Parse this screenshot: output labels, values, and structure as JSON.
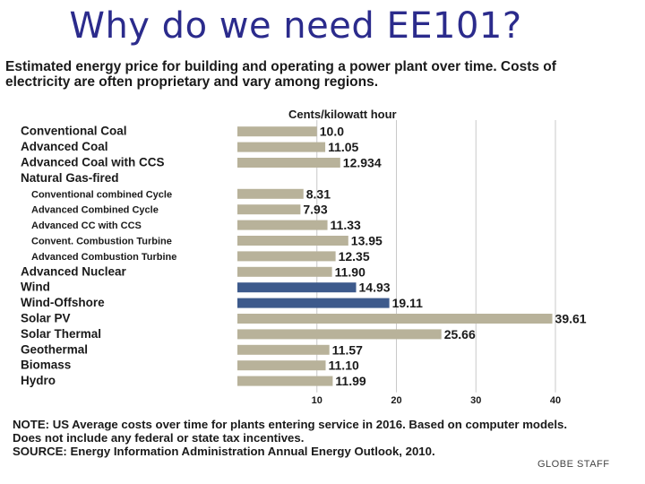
{
  "slide": {
    "title": "Why do we need EE101?"
  },
  "chart_data": {
    "type": "bar",
    "orientation": "horizontal",
    "title": "Estimated energy price for building and operating a power plant over time. Costs of electricity are often proprietary and vary among regions.",
    "ylabel": "Cents/kilowatt hour",
    "xlim": [
      0,
      40
    ],
    "x_ticks": [
      "10",
      "20",
      "30",
      "40"
    ],
    "grid": true,
    "categories": [
      {
        "label": "Conventional Coal",
        "value": 10.0,
        "value_label": "10.0",
        "group": "main",
        "highlight": false
      },
      {
        "label": "Advanced Coal",
        "value": 11.05,
        "value_label": "11.05",
        "group": "main",
        "highlight": false
      },
      {
        "label": "Advanced Coal with CCS",
        "value": 12.934,
        "value_label": "12.934",
        "group": "main",
        "highlight": false
      },
      {
        "label": "Natural Gas-fired",
        "value": null,
        "value_label": "",
        "group": "header",
        "highlight": false
      },
      {
        "label": "Conventional combined Cycle",
        "value": 8.31,
        "value_label": "8.31",
        "group": "sub",
        "highlight": false
      },
      {
        "label": "Advanced Combined Cycle",
        "value": 7.93,
        "value_label": "7.93",
        "group": "sub",
        "highlight": false
      },
      {
        "label": "Advanced CC with CCS",
        "value": 11.33,
        "value_label": "11.33",
        "group": "sub",
        "highlight": false
      },
      {
        "label": "Convent. Combustion Turbine",
        "value": 13.95,
        "value_label": "13.95",
        "group": "sub",
        "highlight": false
      },
      {
        "label": "Advanced Combustion Turbine",
        "value": 12.35,
        "value_label": "12.35",
        "group": "sub",
        "highlight": false
      },
      {
        "label": "Advanced Nuclear",
        "value": 11.9,
        "value_label": "11.90",
        "group": "main",
        "highlight": false
      },
      {
        "label": "Wind",
        "value": 14.93,
        "value_label": "14.93",
        "group": "main",
        "highlight": true
      },
      {
        "label": "Wind-Offshore",
        "value": 19.11,
        "value_label": "19.11",
        "group": "main",
        "highlight": true
      },
      {
        "label": "Solar PV",
        "value": 39.61,
        "value_label": "39.61",
        "group": "main",
        "highlight": false
      },
      {
        "label": "Solar Thermal",
        "value": 25.66,
        "value_label": "25.66",
        "group": "main",
        "highlight": false
      },
      {
        "label": "Geothermal",
        "value": 11.57,
        "value_label": "11.57",
        "group": "main",
        "highlight": false
      },
      {
        "label": "Biomass",
        "value": 11.1,
        "value_label": "11.10",
        "group": "main",
        "highlight": false
      },
      {
        "label": "Hydro",
        "value": 11.99,
        "value_label": "11.99",
        "group": "main",
        "highlight": false
      }
    ],
    "colors": {
      "bar": "#b8b29a",
      "highlight": "#3d5a8c",
      "grid": "#c8c8c8",
      "text": "#1a1a1a"
    },
    "note": "NOTE: US Average costs over time for plants entering service in 2016. Based on computer models. Does not include any federal or state tax incentives.",
    "source": "SOURCE: Energy Information Administration Annual Energy Outlook, 2010.",
    "credit": "GLOBE STAFF"
  }
}
